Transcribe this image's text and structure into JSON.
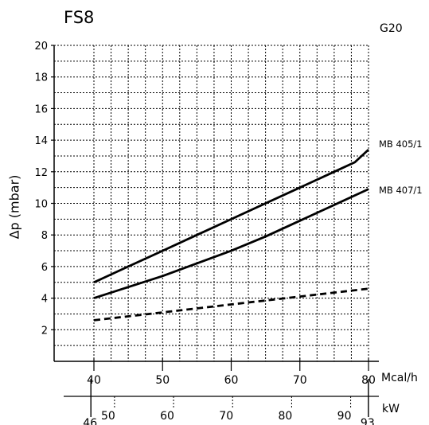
{
  "header": {
    "title": "FS8",
    "gas_type": "G20"
  },
  "chart_data": {
    "type": "line",
    "title": "FS8",
    "ylabel": "Δp (mbar)",
    "ylim": [
      0,
      20
    ],
    "yticks": [
      2,
      4,
      6,
      8,
      10,
      12,
      14,
      16,
      18,
      20
    ],
    "ytick_labels": [
      "2",
      "4",
      "6",
      "8",
      "10",
      "12",
      "14",
      "16",
      "18",
      "20"
    ],
    "xlim": [
      37.5,
      80
    ],
    "xticks": [
      40,
      50,
      60,
      70,
      80
    ],
    "xtick_labels": [
      "40",
      "50",
      "60",
      "70",
      "80"
    ],
    "xunit": "Mcal/h",
    "kw_axis": {
      "unit": "kW",
      "ticks": [
        46,
        50,
        60,
        70,
        80,
        90,
        93
      ],
      "tick_labels": [
        "46",
        "50",
        "60",
        "70",
        "80",
        "90",
        "93"
      ]
    },
    "grid": true,
    "series": [
      {
        "name": "MB 405/1",
        "style": "solid",
        "x": [
          40,
          45,
          50,
          55,
          60,
          65,
          70,
          75,
          78,
          80
        ],
        "y": [
          5.0,
          6.0,
          7.0,
          8.0,
          9.0,
          10.0,
          11.0,
          12.0,
          12.6,
          13.4
        ]
      },
      {
        "name": "MB 407/1",
        "style": "solid",
        "x": [
          40,
          45,
          50,
          55,
          60,
          65,
          70,
          75,
          80
        ],
        "y": [
          4.0,
          4.7,
          5.4,
          6.2,
          7.0,
          7.9,
          8.9,
          9.9,
          10.9
        ]
      },
      {
        "name": "",
        "style": "dashed",
        "x": [
          40,
          50,
          60,
          70,
          80
        ],
        "y": [
          2.6,
          3.1,
          3.6,
          4.1,
          4.6
        ]
      }
    ]
  }
}
